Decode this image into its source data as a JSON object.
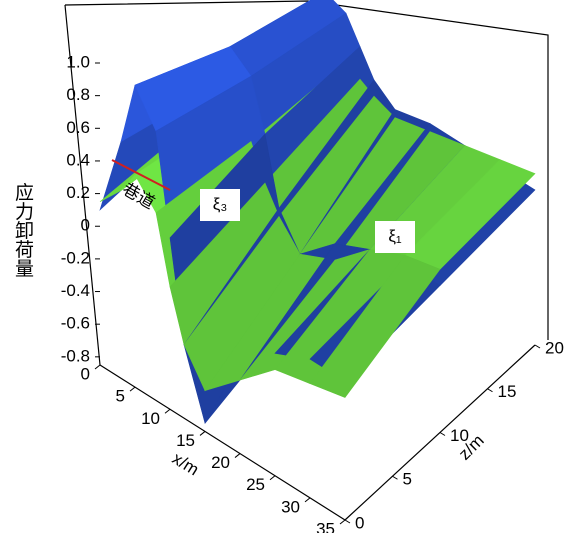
{
  "chart_data": {
    "type": "surface3d",
    "y_label": "应力卸荷量",
    "x_label": "x/m",
    "z_label": "z/m",
    "annotation": "巷道",
    "x": [
      0,
      3,
      5,
      8,
      10,
      12,
      15,
      20,
      25,
      30,
      35
    ],
    "z": [
      0,
      10,
      20
    ],
    "series": [
      {
        "name": "ξ₃",
        "color": "#1f3fa0",
        "values": [
          [
            0.1,
            0.6,
            1.0,
            0.8,
            0.2,
            -0.4,
            -0.8,
            -0.4,
            -0.1,
            0.0,
            0.0
          ],
          [
            0.1,
            0.4,
            0.7,
            0.6,
            0.3,
            -0.1,
            -0.3,
            -0.1,
            0.0,
            0.05,
            0.05
          ],
          [
            0.1,
            0.3,
            0.5,
            0.45,
            0.3,
            0.15,
            0.05,
            0.1,
            0.1,
            0.1,
            0.1
          ]
        ]
      },
      {
        "name": "ξ₁",
        "color": "#5fc43a",
        "values": [
          [
            0.15,
            0.3,
            0.45,
            0.3,
            -0.1,
            -0.4,
            -0.6,
            -0.4,
            -0.2,
            -0.15,
            -0.1
          ],
          [
            0.1,
            0.2,
            0.3,
            0.2,
            0.0,
            -0.15,
            -0.3,
            -0.2,
            0.0,
            0.1,
            0.15
          ],
          [
            0.1,
            0.15,
            0.2,
            0.15,
            0.1,
            0.05,
            0.0,
            0.05,
            0.1,
            0.15,
            0.2
          ]
        ]
      }
    ],
    "ylim": [
      -0.85,
      1.0
    ],
    "xlim": [
      0,
      35
    ],
    "zlim": [
      0,
      20
    ],
    "yticks": [
      {
        "value": 1,
        "label": "1.0"
      },
      0.8,
      0.6,
      0.4,
      0.2,
      0,
      -0.2,
      -0.4,
      -0.6,
      -0.8
    ],
    "xticks": [
      0,
      5,
      10,
      15,
      20,
      25,
      30,
      35
    ],
    "zticks": [
      0,
      5,
      10,
      15,
      20
    ]
  }
}
